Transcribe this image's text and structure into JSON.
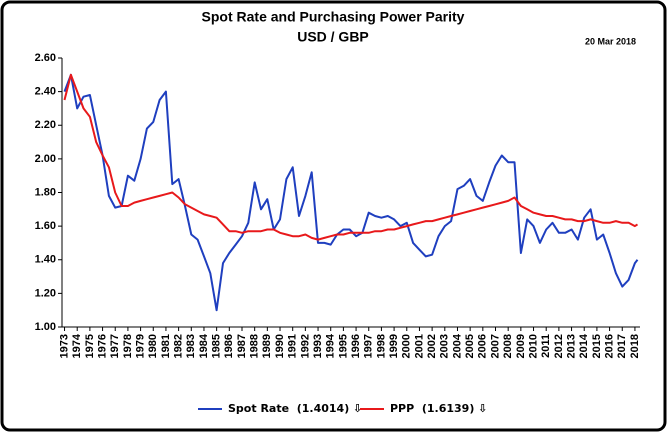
{
  "chart_data": {
    "type": "line",
    "title": "Spot Rate and Purchasing Power Parity",
    "subtitle": "USD / GBP",
    "annotation": "20 Mar 2018",
    "x": [
      1973,
      1973.5,
      1974,
      1974.5,
      1975,
      1975.5,
      1976,
      1976.5,
      1977,
      1977.5,
      1978,
      1978.5,
      1979,
      1979.5,
      1980,
      1980.5,
      1981,
      1981.5,
      1982,
      1982.5,
      1983,
      1983.5,
      1984,
      1984.5,
      1985,
      1985.5,
      1986,
      1986.5,
      1987,
      1987.5,
      1988,
      1988.5,
      1989,
      1989.5,
      1990,
      1990.5,
      1991,
      1991.5,
      1992,
      1992.5,
      1993,
      1993.5,
      1994,
      1994.5,
      1995,
      1995.5,
      1996,
      1996.5,
      1997,
      1997.5,
      1998,
      1998.5,
      1999,
      1999.5,
      2000,
      2000.5,
      2001,
      2001.5,
      2002,
      2002.5,
      2003,
      2003.5,
      2004,
      2004.5,
      2005,
      2005.5,
      2006,
      2006.5,
      2007,
      2007.5,
      2008,
      2008.5,
      2009,
      2009.5,
      2010,
      2010.5,
      2011,
      2011.5,
      2012,
      2012.5,
      2013,
      2013.5,
      2014,
      2014.5,
      2015,
      2015.5,
      2016,
      2016.5,
      2017,
      2017.5,
      2018,
      2018.2
    ],
    "series": [
      {
        "name": "Spot Rate  (1.4014) ⇩",
        "color": "#1f3fbf",
        "values": [
          2.4,
          2.5,
          2.3,
          2.37,
          2.38,
          2.2,
          2.02,
          1.78,
          1.71,
          1.72,
          1.9,
          1.87,
          2.0,
          2.18,
          2.22,
          2.35,
          2.4,
          1.85,
          1.88,
          1.72,
          1.55,
          1.52,
          1.42,
          1.32,
          1.1,
          1.38,
          1.44,
          1.49,
          1.54,
          1.62,
          1.86,
          1.7,
          1.76,
          1.58,
          1.64,
          1.88,
          1.95,
          1.66,
          1.78,
          1.92,
          1.5,
          1.5,
          1.49,
          1.55,
          1.58,
          1.58,
          1.54,
          1.56,
          1.68,
          1.66,
          1.65,
          1.66,
          1.64,
          1.6,
          1.62,
          1.5,
          1.46,
          1.42,
          1.43,
          1.54,
          1.6,
          1.63,
          1.82,
          1.84,
          1.88,
          1.78,
          1.75,
          1.86,
          1.96,
          2.02,
          1.98,
          1.98,
          1.44,
          1.64,
          1.6,
          1.5,
          1.58,
          1.62,
          1.56,
          1.56,
          1.58,
          1.52,
          1.65,
          1.7,
          1.52,
          1.55,
          1.44,
          1.32,
          1.24,
          1.28,
          1.38,
          1.4
        ]
      },
      {
        "name": "PPP  (1.6139) ⇩",
        "color": "#e8191b",
        "values": [
          2.35,
          2.5,
          2.4,
          2.3,
          2.25,
          2.1,
          2.02,
          1.95,
          1.8,
          1.72,
          1.72,
          1.74,
          1.75,
          1.76,
          1.77,
          1.78,
          1.79,
          1.8,
          1.77,
          1.73,
          1.71,
          1.69,
          1.67,
          1.66,
          1.65,
          1.61,
          1.57,
          1.57,
          1.56,
          1.57,
          1.57,
          1.57,
          1.58,
          1.58,
          1.56,
          1.55,
          1.54,
          1.54,
          1.55,
          1.53,
          1.52,
          1.53,
          1.54,
          1.55,
          1.55,
          1.56,
          1.56,
          1.56,
          1.56,
          1.57,
          1.57,
          1.58,
          1.58,
          1.59,
          1.6,
          1.61,
          1.62,
          1.63,
          1.63,
          1.64,
          1.65,
          1.66,
          1.67,
          1.68,
          1.69,
          1.7,
          1.71,
          1.72,
          1.73,
          1.74,
          1.75,
          1.77,
          1.72,
          1.7,
          1.68,
          1.67,
          1.66,
          1.66,
          1.65,
          1.64,
          1.64,
          1.63,
          1.63,
          1.64,
          1.63,
          1.62,
          1.62,
          1.63,
          1.62,
          1.62,
          1.6,
          1.61
        ]
      }
    ],
    "xlim": [
      1972.8,
      2018.4
    ],
    "xticks": [
      1973,
      1974,
      1975,
      1976,
      1977,
      1978,
      1979,
      1980,
      1981,
      1982,
      1983,
      1984,
      1985,
      1986,
      1987,
      1988,
      1989,
      1990,
      1991,
      1992,
      1993,
      1994,
      1995,
      1996,
      1997,
      1998,
      1999,
      2000,
      2001,
      2002,
      2003,
      2004,
      2005,
      2006,
      2007,
      2008,
      2009,
      2010,
      2011,
      2012,
      2013,
      2014,
      2015,
      2016,
      2017,
      2018
    ],
    "ylim": [
      1.0,
      2.6
    ],
    "yticks": [
      {
        "value": 1.0,
        "label": "1.00"
      },
      {
        "value": 1.2,
        "label": "1.20"
      },
      {
        "value": 1.4,
        "label": "1.40"
      },
      {
        "value": 1.6,
        "label": "1.60"
      },
      {
        "value": 1.8,
        "label": "1.80"
      },
      {
        "value": 2.0,
        "label": "2.00"
      },
      {
        "value": 2.2,
        "label": "2.20"
      },
      {
        "value": 2.4,
        "label": "2.40"
      },
      {
        "value": 2.6,
        "label": "2.60"
      }
    ],
    "grid": false,
    "legend": "bottom"
  }
}
